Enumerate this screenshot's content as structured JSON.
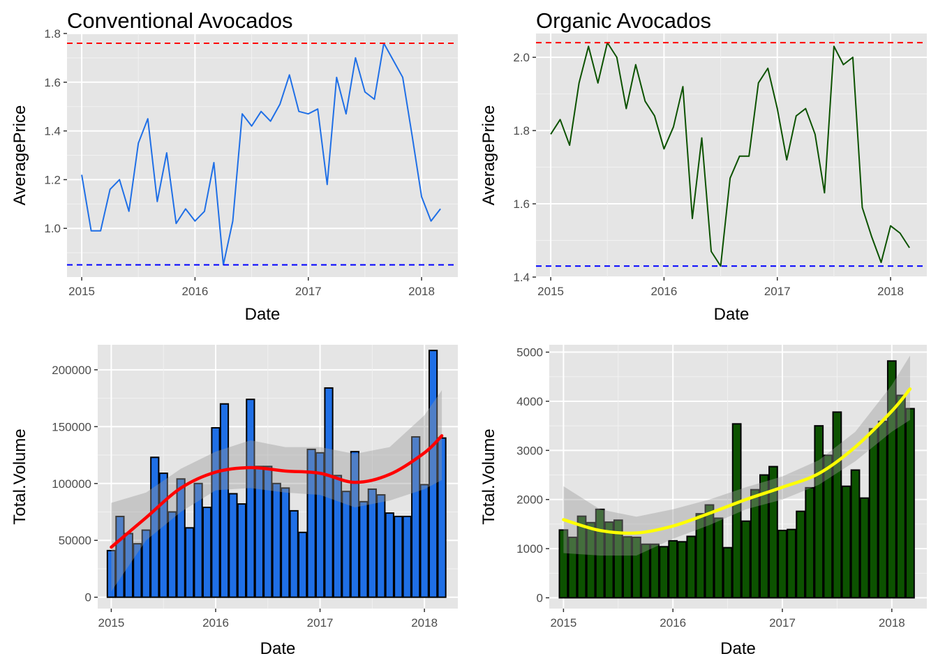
{
  "figure": {
    "layout": "2x2 grid",
    "panel_background": "#E5E5E5",
    "grid_color": "#FFFFFF"
  },
  "chart_data": [
    {
      "id": "conv-price",
      "type": "line",
      "title": "Conventional Avocados",
      "xlabel": "Date",
      "ylabel": "AveragePrice",
      "x_ticks": [
        "2015",
        "2016",
        "2017",
        "2018"
      ],
      "y_ticks": [
        "1.0",
        "1.2",
        "1.4",
        "1.6",
        "1.8"
      ],
      "ylim": [
        0.8,
        1.8
      ],
      "line_color": "#1F6FE6",
      "series": [
        {
          "values": [
            [
              "2015-01-01",
              1.22
            ],
            [
              "2015-02-01",
              0.99
            ],
            [
              "2015-03-01",
              0.99
            ],
            [
              "2015-04-01",
              1.16
            ],
            [
              "2015-05-01",
              1.2
            ],
            [
              "2015-06-01",
              1.07
            ],
            [
              "2015-07-01",
              1.35
            ],
            [
              "2015-08-01",
              1.45
            ],
            [
              "2015-09-01",
              1.11
            ],
            [
              "2015-10-01",
              1.31
            ],
            [
              "2015-11-01",
              1.02
            ],
            [
              "2015-12-01",
              1.08
            ],
            [
              "2016-01-01",
              1.03
            ],
            [
              "2016-02-01",
              1.07
            ],
            [
              "2016-03-01",
              1.27
            ],
            [
              "2016-04-01",
              0.85
            ],
            [
              "2016-05-01",
              1.03
            ],
            [
              "2016-06-01",
              1.47
            ],
            [
              "2016-07-01",
              1.42
            ],
            [
              "2016-08-01",
              1.48
            ],
            [
              "2016-09-01",
              1.44
            ],
            [
              "2016-10-01",
              1.51
            ],
            [
              "2016-11-01",
              1.63
            ],
            [
              "2016-12-01",
              1.48
            ],
            [
              "2017-01-01",
              1.47
            ],
            [
              "2017-02-01",
              1.49
            ],
            [
              "2017-03-01",
              1.18
            ],
            [
              "2017-04-01",
              1.62
            ],
            [
              "2017-05-01",
              1.47
            ],
            [
              "2017-06-01",
              1.7
            ],
            [
              "2017-07-01",
              1.56
            ],
            [
              "2017-08-01",
              1.53
            ],
            [
              "2017-09-01",
              1.76
            ],
            [
              "2017-10-01",
              1.69
            ],
            [
              "2017-11-01",
              1.62
            ],
            [
              "2017-12-01",
              1.38
            ],
            [
              "2018-01-01",
              1.13
            ],
            [
              "2018-02-01",
              1.03
            ],
            [
              "2018-03-01",
              1.08
            ]
          ]
        }
      ],
      "hlines": [
        {
          "value": 1.76,
          "color": "#FF0000",
          "style": "dashed"
        },
        {
          "value": 0.85,
          "color": "#0000FF",
          "style": "dashed"
        }
      ]
    },
    {
      "id": "org-price",
      "type": "line",
      "title": "Organic Avocados",
      "xlabel": "Date",
      "ylabel": "AveragePrice",
      "x_ticks": [
        "2015",
        "2016",
        "2017",
        "2018"
      ],
      "y_ticks": [
        "1.4",
        "1.6",
        "1.8",
        "2.0"
      ],
      "ylim": [
        1.4,
        2.065
      ],
      "line_color": "#0C5200",
      "series": [
        {
          "values": [
            [
              "2015-01-01",
              1.79
            ],
            [
              "2015-02-01",
              1.83
            ],
            [
              "2015-03-01",
              1.76
            ],
            [
              "2015-04-01",
              1.93
            ],
            [
              "2015-05-01",
              2.03
            ],
            [
              "2015-06-01",
              1.93
            ],
            [
              "2015-07-01",
              2.04
            ],
            [
              "2015-08-01",
              2.0
            ],
            [
              "2015-09-01",
              1.86
            ],
            [
              "2015-10-01",
              1.98
            ],
            [
              "2015-11-01",
              1.88
            ],
            [
              "2015-12-01",
              1.84
            ],
            [
              "2016-01-01",
              1.75
            ],
            [
              "2016-02-01",
              1.81
            ],
            [
              "2016-03-01",
              1.92
            ],
            [
              "2016-04-01",
              1.56
            ],
            [
              "2016-05-01",
              1.78
            ],
            [
              "2016-06-01",
              1.47
            ],
            [
              "2016-07-01",
              1.43
            ],
            [
              "2016-08-01",
              1.67
            ],
            [
              "2016-09-01",
              1.73
            ],
            [
              "2016-10-01",
              1.73
            ],
            [
              "2016-11-01",
              1.93
            ],
            [
              "2016-12-01",
              1.97
            ],
            [
              "2017-01-01",
              1.86
            ],
            [
              "2017-02-01",
              1.72
            ],
            [
              "2017-03-01",
              1.84
            ],
            [
              "2017-04-01",
              1.86
            ],
            [
              "2017-05-01",
              1.79
            ],
            [
              "2017-06-01",
              1.63
            ],
            [
              "2017-07-01",
              2.03
            ],
            [
              "2017-08-01",
              1.98
            ],
            [
              "2017-09-01",
              2.0
            ],
            [
              "2017-10-01",
              1.59
            ],
            [
              "2017-11-01",
              1.51
            ],
            [
              "2017-12-01",
              1.44
            ],
            [
              "2018-01-01",
              1.54
            ],
            [
              "2018-02-01",
              1.52
            ],
            [
              "2018-03-01",
              1.48
            ]
          ]
        }
      ],
      "hlines": [
        {
          "value": 2.04,
          "color": "#FF0000",
          "style": "dashed"
        },
        {
          "value": 1.43,
          "color": "#0000FF",
          "style": "dashed"
        }
      ]
    },
    {
      "id": "conv-volume",
      "type": "bar",
      "xlabel": "Date",
      "ylabel": "Total.Volume",
      "x_ticks": [
        "2015",
        "2016",
        "2017",
        "2018"
      ],
      "y_ticks": [
        "0",
        "50000",
        "100000",
        "150000",
        "200000"
      ],
      "ylim": [
        -10000,
        222000
      ],
      "bar_color": "#1F6FE6",
      "smooth_color": "#FF0000",
      "series": [
        {
          "values": [
            [
              "2015-01-01",
              41000
            ],
            [
              "2015-02-01",
              71000
            ],
            [
              "2015-03-01",
              56000
            ],
            [
              "2015-04-01",
              47000
            ],
            [
              "2015-05-01",
              59000
            ],
            [
              "2015-06-01",
              123000
            ],
            [
              "2015-07-01",
              109000
            ],
            [
              "2015-08-01",
              75000
            ],
            [
              "2015-09-01",
              104000
            ],
            [
              "2015-10-01",
              61000
            ],
            [
              "2015-11-01",
              100000
            ],
            [
              "2015-12-01",
              79000
            ],
            [
              "2016-01-01",
              149000
            ],
            [
              "2016-02-01",
              170000
            ],
            [
              "2016-03-01",
              91000
            ],
            [
              "2016-04-01",
              82000
            ],
            [
              "2016-05-01",
              174000
            ],
            [
              "2016-06-01",
              115000
            ],
            [
              "2016-07-01",
              115000
            ],
            [
              "2016-08-01",
              100000
            ],
            [
              "2016-09-01",
              96000
            ],
            [
              "2016-10-01",
              76000
            ],
            [
              "2016-11-01",
              57000
            ],
            [
              "2016-12-01",
              130000
            ],
            [
              "2017-01-01",
              127000
            ],
            [
              "2017-02-01",
              184000
            ],
            [
              "2017-03-01",
              107000
            ],
            [
              "2017-04-01",
              93000
            ],
            [
              "2017-05-01",
              128000
            ],
            [
              "2017-06-01",
              84000
            ],
            [
              "2017-07-01",
              95000
            ],
            [
              "2017-08-01",
              90000
            ],
            [
              "2017-09-01",
              74000
            ],
            [
              "2017-10-01",
              71000
            ],
            [
              "2017-11-01",
              71000
            ],
            [
              "2017-12-01",
              141000
            ],
            [
              "2018-01-01",
              99000
            ],
            [
              "2018-02-01",
              217000
            ],
            [
              "2018-03-01",
              140000
            ]
          ]
        }
      ],
      "smooth": [
        [
          "2015-01-01",
          44000,
          5000,
          83000
        ],
        [
          "2015-05-01",
          70000,
          50000,
          92000
        ],
        [
          "2015-09-01",
          96000,
          75000,
          113000
        ],
        [
          "2016-01-01",
          110000,
          94000,
          128000
        ],
        [
          "2016-05-01",
          114000,
          96000,
          138000
        ],
        [
          "2016-09-01",
          111000,
          92000,
          132000
        ],
        [
          "2017-01-01",
          109000,
          90000,
          132000
        ],
        [
          "2017-05-01",
          101000,
          79000,
          126000
        ],
        [
          "2017-09-01",
          108000,
          85000,
          132000
        ],
        [
          "2018-01-01",
          127000,
          95000,
          160000
        ],
        [
          "2018-03-01",
          142000,
          103000,
          182000
        ]
      ]
    },
    {
      "id": "org-volume",
      "type": "bar",
      "xlabel": "Date",
      "ylabel": "Total.Volume",
      "x_ticks": [
        "2015",
        "2016",
        "2017",
        "2018"
      ],
      "y_ticks": [
        "0",
        "1000",
        "2000",
        "3000",
        "4000",
        "5000"
      ],
      "ylim": [
        -220,
        5150
      ],
      "bar_color": "#0C5200",
      "smooth_color": "#FFFF00",
      "series": [
        {
          "values": [
            [
              "2015-01-01",
              1380
            ],
            [
              "2015-02-01",
              1230
            ],
            [
              "2015-03-01",
              1660
            ],
            [
              "2015-04-01",
              1530
            ],
            [
              "2015-05-01",
              1800
            ],
            [
              "2015-06-01",
              1540
            ],
            [
              "2015-07-01",
              1580
            ],
            [
              "2015-08-01",
              1240
            ],
            [
              "2015-09-01",
              1230
            ],
            [
              "2015-10-01",
              1090
            ],
            [
              "2015-11-01",
              1090
            ],
            [
              "2015-12-01",
              1040
            ],
            [
              "2016-01-01",
              1160
            ],
            [
              "2016-02-01",
              1140
            ],
            [
              "2016-03-01",
              1250
            ],
            [
              "2016-04-01",
              1710
            ],
            [
              "2016-05-01",
              1890
            ],
            [
              "2016-06-01",
              1620
            ],
            [
              "2016-07-01",
              1020
            ],
            [
              "2016-08-01",
              3540
            ],
            [
              "2016-09-01",
              1560
            ],
            [
              "2016-10-01",
              2200
            ],
            [
              "2016-11-01",
              2500
            ],
            [
              "2016-12-01",
              2670
            ],
            [
              "2017-01-01",
              1370
            ],
            [
              "2017-02-01",
              1390
            ],
            [
              "2017-03-01",
              1760
            ],
            [
              "2017-04-01",
              2240
            ],
            [
              "2017-05-01",
              3500
            ],
            [
              "2017-06-01",
              2900
            ],
            [
              "2017-07-01",
              3780
            ],
            [
              "2017-08-01",
              2270
            ],
            [
              "2017-09-01",
              2600
            ],
            [
              "2017-10-01",
              2030
            ],
            [
              "2017-11-01",
              3440
            ],
            [
              "2017-12-01",
              3590
            ],
            [
              "2018-01-01",
              4820
            ],
            [
              "2018-02-01",
              4120
            ],
            [
              "2018-03-01",
              3850
            ]
          ]
        }
      ],
      "smooth": [
        [
          "2015-01-01",
          1590,
          910,
          2270
        ],
        [
          "2015-05-01",
          1370,
          860,
          1800
        ],
        [
          "2015-09-01",
          1320,
          860,
          1650
        ],
        [
          "2016-01-01",
          1460,
          1200,
          1800
        ],
        [
          "2016-05-01",
          1720,
          1480,
          2000
        ],
        [
          "2016-09-01",
          2000,
          1800,
          2250
        ],
        [
          "2017-01-01",
          2250,
          2000,
          2470
        ],
        [
          "2017-05-01",
          2530,
          2300,
          2800
        ],
        [
          "2017-09-01",
          3070,
          2780,
          3380
        ],
        [
          "2018-01-01",
          3800,
          3380,
          4330
        ],
        [
          "2018-03-01",
          4250,
          3620,
          4930
        ]
      ]
    }
  ]
}
